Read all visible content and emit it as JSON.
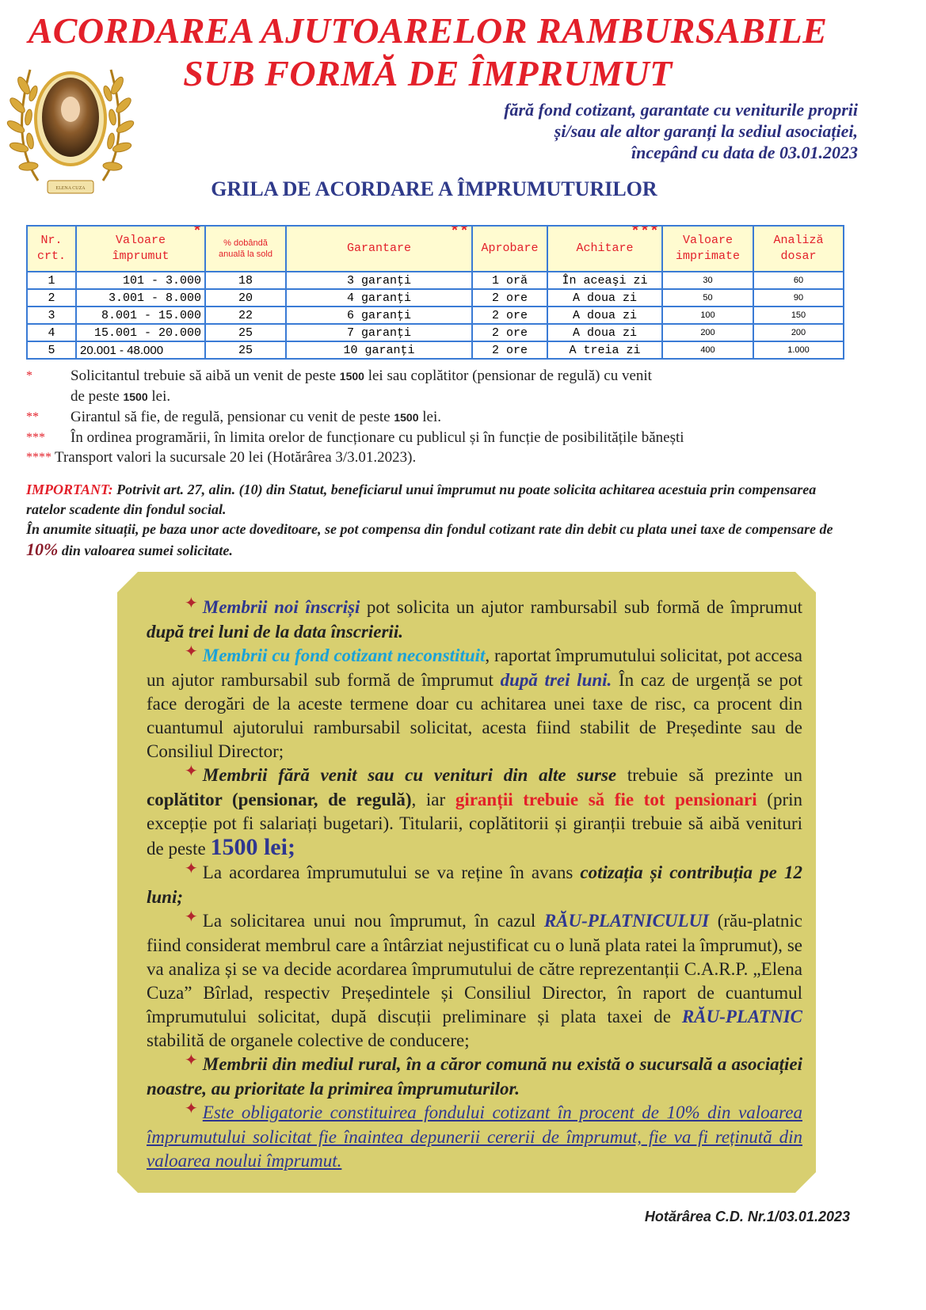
{
  "header": {
    "title_line1": "ACORDAREA AJUTOARELOR RAMBURSABILE",
    "title_line2": "SUB FORMĂ DE ÎMPRUMUT",
    "subtitle_lines": [
      "fără fond cotizant, garantate cu veniturile proprii",
      "și/sau ale altor garanți la sediul asociației,",
      "începând cu data de 03.01.2023"
    ],
    "logo_text": "ELENA CUZA"
  },
  "grid_title": "GRILA DE ACORDARE A ÎMPRUMUTURILOR",
  "table": {
    "headers": [
      {
        "label1": "Nr.",
        "label2": "crt.",
        "stars": ""
      },
      {
        "label1": "Valoare",
        "label2": "împrumut",
        "stars": "*"
      },
      {
        "label1": "% dobândă",
        "label2": "anuală la sold",
        "stars": ""
      },
      {
        "label1": "Garantare",
        "label2": "",
        "stars": "**"
      },
      {
        "label1": "Aprobare",
        "label2": "",
        "stars": ""
      },
      {
        "label1": "Achitare",
        "label2": "",
        "stars": "***"
      },
      {
        "label1": "Valoare",
        "label2": "imprimate",
        "stars": ""
      },
      {
        "label1": "Analiză",
        "label2": "dosar",
        "stars": ""
      }
    ],
    "rows": [
      [
        "1",
        "101 -  3.000",
        "18",
        "3 garanţi",
        "1 oră",
        "În aceaşi zi",
        "30",
        "60"
      ],
      [
        "2",
        "3.001 -  8.000",
        "20",
        "4 garanţi",
        "2 ore",
        "A doua zi",
        "50",
        "90"
      ],
      [
        "3",
        "8.001 - 15.000",
        "22",
        "6 garanţi",
        "2 ore",
        "A doua zi",
        "100",
        "150"
      ],
      [
        "4",
        "15.001 - 20.000",
        "25",
        "7 garanţi",
        "2 ore",
        "A doua zi",
        "200",
        "200"
      ],
      [
        "5",
        "20.001 - 48.000",
        "25",
        "10 garanţi",
        "2 ore",
        "A treia zi",
        "400",
        "1.000"
      ]
    ]
  },
  "notes": [
    {
      "marker": "*",
      "pre": "Solicitantul trebuie să aibă un venit de peste ",
      "num": "1500",
      "post": " lei sau coplătitor (pensionar de regulă) cu venit",
      "pre2": "de peste ",
      "num2": "1500",
      "post2": " lei."
    },
    {
      "marker": "**",
      "pre": "Girantul să fie, de regulă, pensionar cu venit de peste ",
      "num": "1500",
      "post": " lei."
    },
    {
      "marker": "***",
      "pre": "În ordinea programării, în limita orelor de funcționare cu publicul și în funcție de posibilitățile bănești"
    },
    {
      "marker": "****",
      "pre": "Transport valori la sucursale 20 lei (Hotărârea 3/3.01.2023)."
    }
  ],
  "important": {
    "label": "IMPORTANT:",
    "text1": " Potrivit art. 27, alin. (10) din Statut, beneficiarul unui împrumut nu poate solicita achitarea acestuia prin compensarea ratelor scadente din fondul social.",
    "text2": "În anumite situații, pe baza unor acte doveditoare, se pot compensa din fondul cotizant rate din debit cu plata unei taxe de compensare de ",
    "percent": "10%",
    "text3": " din valoarea sumei solicitate."
  },
  "box_paragraphs": [
    [
      {
        "t": "Membrii noi înscriși",
        "s": "bi-blue"
      },
      {
        "t": " pot solicita un ajutor rambursabil sub formă de împrumut "
      },
      {
        "t": "după trei luni de la data înscrierii.",
        "s": "bi"
      }
    ],
    [
      {
        "t": "Membrii cu fond cotizant neconstituit",
        "s": "bi-cyan"
      },
      {
        "t": ", raportat împrumutului solicitat, pot accesa un ajutor rambursabil sub formă de împrumut "
      },
      {
        "t": "după trei luni.",
        "s": "bi-blue"
      },
      {
        "t": " În caz de urgență se pot face derogări de la aceste termene doar cu achitarea unei taxe de risc, ca procent din cuantumul ajutorului rambursabil solicitat, acesta fiind stabilit de Președinte sau de Consiliul Director;"
      }
    ],
    [
      {
        "t": "Membrii fără venit sau cu venituri din alte surse",
        "s": "bi"
      },
      {
        "t": " trebuie să prezinte un "
      },
      {
        "t": "coplătitor (pensionar, de regulă)",
        "s": "b"
      },
      {
        "t": ", iar "
      },
      {
        "t": "giranții trebuie să fie tot pensionari",
        "s": "b-red"
      },
      {
        "t": " (prin excepție pot fi salariați bugetari). Titularii, coplătitorii și giranții trebuie să aibă venituri de peste "
      },
      {
        "t": "1500 lei;",
        "s": "big-blue"
      }
    ],
    [
      {
        "t": "La acordarea împrumutului se va reține în avans "
      },
      {
        "t": "cotizația și contribuția pe 12 luni;",
        "s": "bi"
      }
    ],
    [
      {
        "t": "La solicitarea unui nou împrumut, în cazul "
      },
      {
        "t": "RĂU-PLATNICULUI",
        "s": "bi-blue"
      },
      {
        "t": " (rău-platnic fiind considerat membrul  care a întârziat nejustificat cu o lună plata ratei la împrumut), se va analiza și se va decide acordarea împrumutului de către reprezentanții C.A.R.P. „Elena Cuza” Bîrlad, respectiv Președintele și Consiliul Director, în raport de cuantumul împrumutului solicitat, după discuții preliminare și plata taxei de "
      },
      {
        "t": "RĂU-PLATNIC",
        "s": "bi-blue"
      },
      {
        "t": " stabilită de organele colective de conducere;"
      }
    ],
    [
      {
        "t": "Membrii din mediul rural, în a căror comună nu există o sucursală a asociației noastre, au prioritate la primirea împrumuturilor.",
        "s": "bi"
      }
    ],
    [
      {
        "t": "Este obligatorie constituirea fondului cotizant în procent de 10% din valoarea împrumutului solicitat fie înaintea depunerii cererii de împrumut, fie va fi  reținută din valoarea noului împrumut.",
        "s": "i-blue-u"
      }
    ]
  ],
  "bullet_glyph": "✦",
  "footer": "Hotărârea C.D. Nr.1/03.01.2023",
  "colors": {
    "title_red": "#e3202a",
    "navy": "#2b2f7e",
    "box_bg": "#d8cf70",
    "table_border": "#3a7bd5",
    "header_bg": "#fffbd0"
  }
}
